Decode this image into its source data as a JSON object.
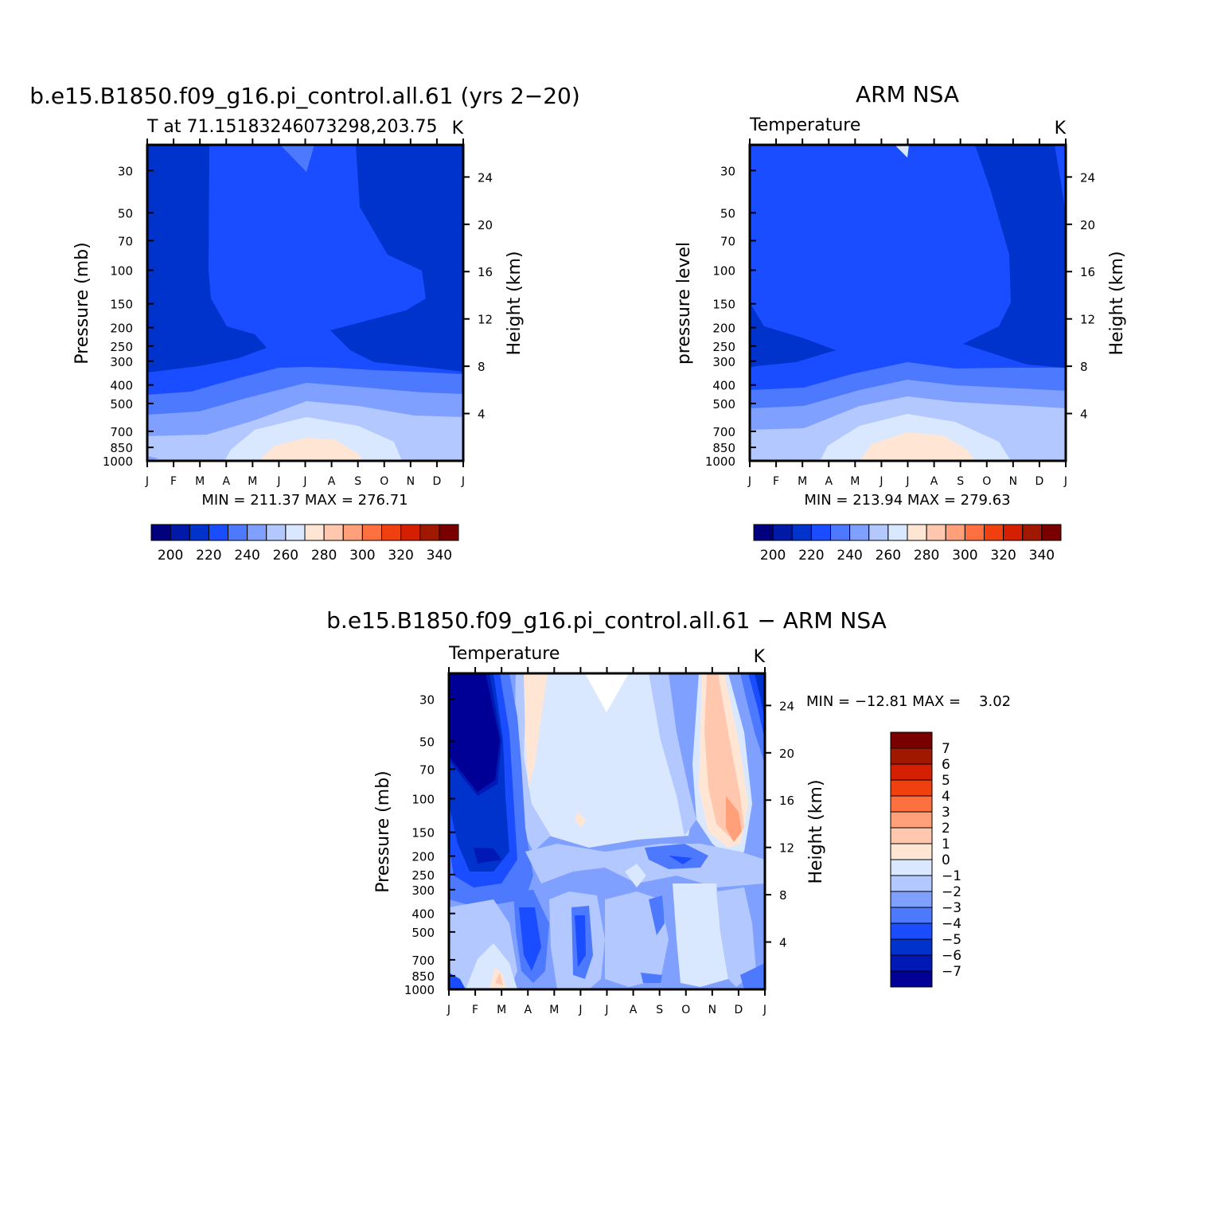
{
  "colors": {
    "temp": [
      "#00007f",
      "#0019a6",
      "#0032cc",
      "#1a4dff",
      "#4d79ff",
      "#80a0ff",
      "#b3c8ff",
      "#d9e8ff",
      "#ffe6d4",
      "#ffc8ae",
      "#ffa07a",
      "#ff7040",
      "#f04010",
      "#d42000",
      "#a01800",
      "#7a0000"
    ],
    "diff": [
      "#000096",
      "#0019b4",
      "#0032cc",
      "#1a4dff",
      "#4d79ff",
      "#80a0ff",
      "#b3c8ff",
      "#d9e8ff",
      "#ffe6d4",
      "#ffc8ae",
      "#ffa07a",
      "#ff7040",
      "#f04010",
      "#d42000",
      "#a01800",
      "#7a0000"
    ]
  },
  "panels": {
    "top_left": {
      "title": "b.e15.B1850.f09_g16.pi_control.all.61 (yrs 2−20)",
      "subtitle_left": "T at 71.15183246073298,203.75",
      "subtitle_right": "K",
      "ylabel": "Pressure (mb)",
      "ylabel_right": "Height (km)",
      "minmax": "MIN = 211.37 MAX = 276.71"
    },
    "top_right": {
      "title": "ARM NSA",
      "subtitle_left": "Temperature",
      "subtitle_right": "K",
      "ylabel": "pressure level",
      "ylabel_right": "Height (km)",
      "minmax": "MIN = 213.94 MAX = 279.63"
    },
    "bottom": {
      "title": "b.e15.B1850.f09_g16.pi_control.all.61 − ARM NSA",
      "subtitle_left": "Temperature",
      "subtitle_right": "K",
      "ylabel": "Pressure (mb)",
      "ylabel_right": "Height (km)",
      "minmax": "MIN = −12.81 MAX =    3.02"
    }
  },
  "chart_data": [
    {
      "type": "heatmap",
      "title": "b.e15.B1850.f09_g16.pi_control.all.61 (yrs 2−20)",
      "subtitle": "T at 71.15183246073298,203.75",
      "units": "K",
      "xlabel": "",
      "ylabel": "Pressure (mb)",
      "ylabel_right": "Height (km)",
      "x_ticks": [
        "J",
        "F",
        "M",
        "A",
        "M",
        "J",
        "J",
        "A",
        "S",
        "O",
        "N",
        "D",
        "J"
      ],
      "y_ticks": [
        "30",
        "50",
        "70",
        "100",
        "150",
        "200",
        "250",
        "300",
        "400",
        "500",
        "700",
        "850",
        "1000"
      ],
      "y_ticks_right": [
        "24",
        "20",
        "16",
        "12",
        "8",
        "4"
      ],
      "colorbar_labels": [
        "200",
        "220",
        "240",
        "260",
        "280",
        "300",
        "320",
        "340"
      ],
      "min": 211.37,
      "max": 276.71
    },
    {
      "type": "heatmap",
      "title": "ARM NSA",
      "subtitle": "Temperature",
      "units": "K",
      "xlabel": "",
      "ylabel": "pressure level",
      "ylabel_right": "Height (km)",
      "x_ticks": [
        "J",
        "F",
        "M",
        "A",
        "M",
        "J",
        "J",
        "A",
        "S",
        "O",
        "N",
        "D",
        "J"
      ],
      "y_ticks": [
        "30",
        "50",
        "70",
        "100",
        "150",
        "200",
        "250",
        "300",
        "400",
        "500",
        "700",
        "850",
        "1000"
      ],
      "y_ticks_right": [
        "24",
        "20",
        "16",
        "12",
        "8",
        "4"
      ],
      "colorbar_labels": [
        "200",
        "220",
        "240",
        "260",
        "280",
        "300",
        "320",
        "340"
      ],
      "min": 213.94,
      "max": 279.63
    },
    {
      "type": "heatmap",
      "title": "b.e15.B1850.f09_g16.pi_control.all.61 − ARM NSA",
      "subtitle": "Temperature",
      "units": "K",
      "xlabel": "",
      "ylabel": "Pressure (mb)",
      "ylabel_right": "Height (km)",
      "x_ticks": [
        "J",
        "F",
        "M",
        "A",
        "M",
        "J",
        "J",
        "A",
        "S",
        "O",
        "N",
        "D",
        "J"
      ],
      "y_ticks": [
        "30",
        "50",
        "70",
        "100",
        "150",
        "200",
        "250",
        "300",
        "400",
        "500",
        "700",
        "850",
        "1000"
      ],
      "y_ticks_right": [
        "24",
        "20",
        "16",
        "12",
        "8",
        "4"
      ],
      "colorbar_labels": [
        "7",
        "6",
        "5",
        "4",
        "3",
        "2",
        "1",
        "0",
        "−1",
        "−2",
        "−3",
        "−4",
        "−5",
        "−6",
        "−7"
      ],
      "min": -12.81,
      "max": 3.02
    }
  ]
}
